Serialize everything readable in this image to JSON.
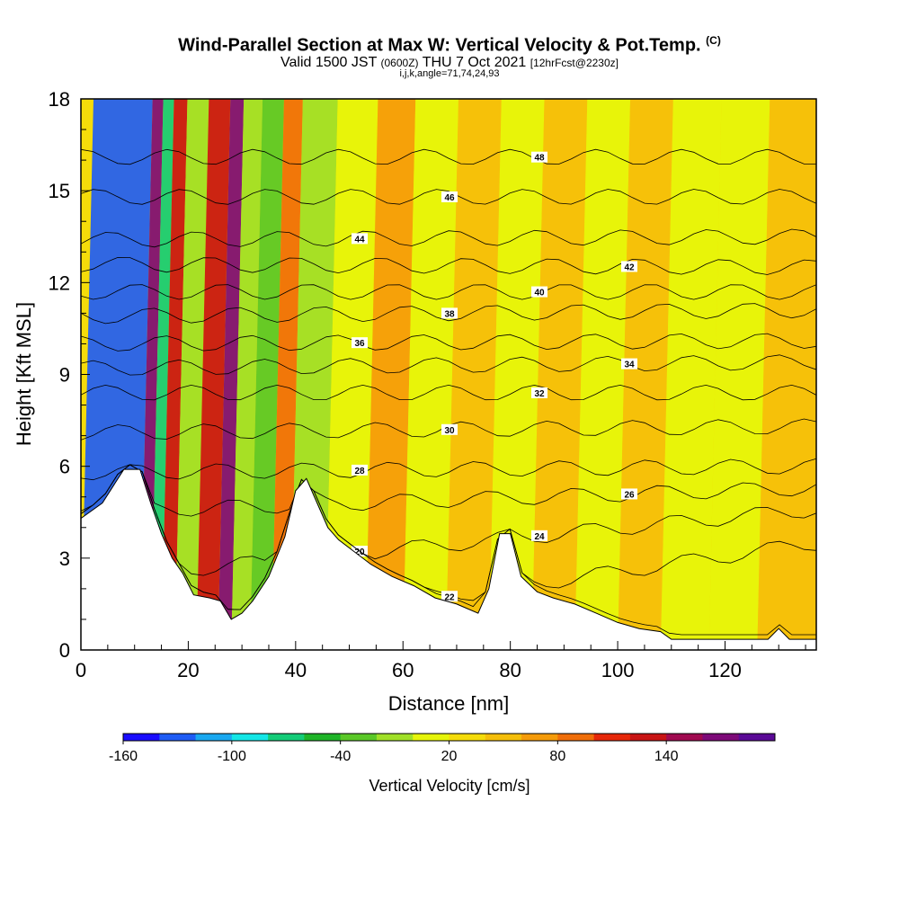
{
  "chart_data": {
    "type": "heatmap",
    "title": "Wind-Parallel Section at Max W: Vertical Velocity & Pot.Temp.",
    "title_mark": "(C)",
    "subtitle_main": "Valid 1500 JST",
    "subtitle_utc": "(0600Z)",
    "subtitle_date": "THU 7 Oct 2021",
    "subtitle_fcst": "[12hrFcst@2230z]",
    "subtitle_indices": "i,j,k,angle=71,74,24,93",
    "xlabel": "Distance [nm]",
    "ylabel": "Height [Kft MSL]",
    "xlim": [
      0,
      137
    ],
    "ylim": [
      0,
      18
    ],
    "x_ticks": [
      "0",
      "20",
      "40",
      "60",
      "80",
      "100",
      "120"
    ],
    "y_ticks": [
      "0",
      "3",
      "6",
      "9",
      "12",
      "15",
      "18"
    ],
    "colorbar": {
      "label": "Vertical Velocity [cm/s]",
      "tick_labels": [
        "-160",
        "-100",
        "-40",
        "20",
        "80",
        "140"
      ],
      "colors": [
        "#1a0dff",
        "#1f5cf5",
        "#1aa8f0",
        "#14e6e6",
        "#14cc78",
        "#1eb428",
        "#5ac828",
        "#a0e028",
        "#e6f50a",
        "#f5dc0a",
        "#f5be0a",
        "#f59b0a",
        "#f06e0a",
        "#e6280a",
        "#c81414",
        "#a00a50",
        "#7d0a78",
        "#5a0a96"
      ]
    },
    "terrain_profile": {
      "x": [
        0,
        4,
        8,
        11,
        13,
        15,
        17,
        19,
        21,
        24,
        26,
        28,
        30,
        32,
        35,
        38,
        40,
        42,
        44,
        46,
        48,
        51,
        54,
        58,
        62,
        66,
        70,
        74,
        76,
        78,
        80,
        82,
        85,
        88,
        92,
        96,
        100,
        104,
        108,
        110,
        112,
        116,
        120,
        124,
        128,
        130,
        132,
        137
      ],
      "y": [
        4.3,
        4.8,
        5.9,
        5.9,
        4.8,
        3.8,
        3.0,
        2.5,
        1.8,
        1.7,
        1.6,
        1.0,
        1.2,
        1.6,
        2.4,
        3.7,
        5.2,
        5.6,
        4.8,
        4.0,
        3.6,
        3.2,
        2.8,
        2.4,
        2.1,
        1.7,
        1.5,
        1.2,
        2.0,
        3.8,
        3.8,
        2.4,
        1.9,
        1.7,
        1.5,
        1.2,
        0.9,
        0.7,
        0.6,
        0.35,
        0.35,
        0.35,
        0.35,
        0.35,
        0.35,
        0.7,
        0.35,
        0.35
      ]
    },
    "theta_contours": [
      {
        "label": "20",
        "level": [
          0.0,
          0.0
        ]
      },
      {
        "label": "22",
        "level": [
          0.0,
          3.5
        ]
      },
      {
        "label": "24",
        "level": [
          2.3,
          4.6
        ]
      },
      {
        "label": "26",
        "level": [
          4.5,
          5.3
        ]
      },
      {
        "label": "28",
        "level": [
          5.8,
          6.0
        ]
      },
      {
        "label": "30",
        "level": [
          7.1,
          7.3
        ]
      },
      {
        "label": "32",
        "level": [
          8.4,
          8.4
        ]
      },
      {
        "label": "34",
        "level": [
          9.2,
          9.4
        ]
      },
      {
        "label": "36",
        "level": [
          10.0,
          10.1
        ]
      },
      {
        "label": "38",
        "level": [
          10.9,
          11.1
        ]
      },
      {
        "label": "40",
        "level": [
          11.7,
          11.7
        ]
      },
      {
        "label": "42",
        "level": [
          12.6,
          12.5
        ]
      },
      {
        "label": "44",
        "level": [
          13.4,
          13.5
        ]
      },
      {
        "label": "46",
        "level": [
          14.8,
          14.8
        ]
      },
      {
        "label": "48",
        "level": [
          16.1,
          16.1
        ]
      }
    ],
    "velocity_features": [
      {
        "x": 10,
        "w": -160
      },
      {
        "x": 12,
        "w": 140
      },
      {
        "x": 14,
        "w": -100
      },
      {
        "x": 16,
        "w": 100
      },
      {
        "x": 19,
        "w": -40
      },
      {
        "x": 24,
        "w": 100
      },
      {
        "x": 27,
        "w": 140
      },
      {
        "x": 29,
        "w": -40
      },
      {
        "x": 34,
        "w": -60
      },
      {
        "x": 37,
        "w": 60
      },
      {
        "x": 41,
        "w": -40
      },
      {
        "x": 50,
        "w": -20
      },
      {
        "x": 56,
        "w": 40
      },
      {
        "x": 64,
        "w": -20
      },
      {
        "x": 72,
        "w": 30
      },
      {
        "x": 80,
        "w": -20
      },
      {
        "x": 88,
        "w": 20
      },
      {
        "x": 96,
        "w": -20
      },
      {
        "x": 104,
        "w": 20
      },
      {
        "x": 112,
        "w": -20
      },
      {
        "x": 122,
        "w": -20
      },
      {
        "x": 130,
        "w": 20
      }
    ]
  }
}
